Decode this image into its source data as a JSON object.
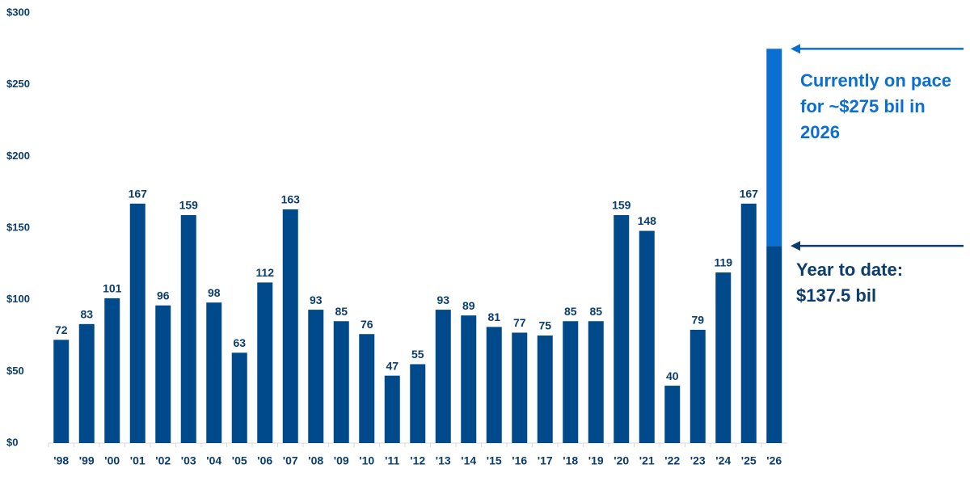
{
  "chart_data": {
    "type": "stacked-bar",
    "categories": [
      "'98",
      "'99",
      "'00",
      "'01",
      "'02",
      "'03",
      "'04",
      "'05",
      "'06",
      "'07",
      "'08",
      "'09",
      "'10",
      "'11",
      "'12",
      "'13",
      "'14",
      "'15",
      "'16",
      "'17",
      "'18",
      "'19",
      "'20",
      "'21",
      "'22",
      "'23",
      "'24",
      "'25",
      "'26"
    ],
    "series": [
      {
        "color": "#004a8c",
        "values": [
          72,
          83,
          101,
          167,
          96,
          159,
          98,
          63,
          112,
          163,
          93,
          85,
          76,
          47,
          55,
          93,
          89,
          81,
          77,
          75,
          85,
          85,
          159,
          148,
          40,
          79,
          119,
          167,
          137.5
        ],
        "value_labels": [
          "72",
          "83",
          "101",
          "167",
          "96",
          "159",
          "98",
          "63",
          "112",
          "163",
          "93",
          "85",
          "76",
          "47",
          "55",
          "93",
          "89",
          "81",
          "77",
          "75",
          "85",
          "85",
          "159",
          "148",
          "40",
          "79",
          "119",
          "167",
          null
        ]
      },
      {
        "color": "#0a6fd1",
        "values": [
          null,
          null,
          null,
          null,
          null,
          null,
          null,
          null,
          null,
          null,
          null,
          null,
          null,
          null,
          null,
          null,
          null,
          null,
          null,
          null,
          null,
          null,
          null,
          null,
          null,
          null,
          null,
          null,
          137.5
        ]
      }
    ],
    "ylim": [
      0,
      300
    ],
    "yticks": [
      {
        "value": 0,
        "label": "$0"
      },
      {
        "value": 50,
        "label": "$50"
      },
      {
        "value": 100,
        "label": "$100"
      },
      {
        "value": 150,
        "label": "$150"
      },
      {
        "value": 200,
        "label": "$200"
      },
      {
        "value": 250,
        "label": "$250"
      },
      {
        "value": 300,
        "label": "$300"
      }
    ],
    "annotations": [
      {
        "text": "Currently on pace for ~$275 bil in 2026",
        "color": "#0a6fd1"
      },
      {
        "text": "Year to date: $137.5 bil",
        "color": "#0b3d6e"
      }
    ]
  }
}
